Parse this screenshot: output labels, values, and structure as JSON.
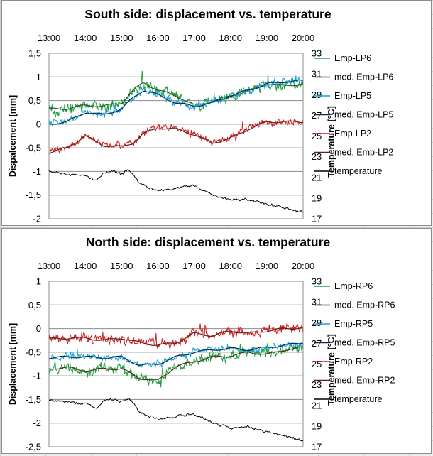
{
  "chart_data": [
    {
      "type": "line",
      "title": "South side: displacement vs. temperature",
      "ylabel": "Dispalcement [mm]",
      "y2label": "Temperature [°C]",
      "xlabel": "",
      "x_ticks": [
        "13:00",
        "14:00",
        "15:00",
        "16:00",
        "17:00",
        "18:00",
        "19:00",
        "20:00"
      ],
      "xlim": [
        13,
        20
      ],
      "ylim": [
        -2,
        1.5
      ],
      "y_ticks": [
        "1,5",
        "1",
        "0,5",
        "0",
        "-0,5",
        "-1",
        "-1,5",
        "-2"
      ],
      "y2lim": [
        17,
        33
      ],
      "y2_ticks": [
        "33",
        "31",
        "29",
        "27",
        "25",
        "23",
        "21",
        "19",
        "17"
      ],
      "grid": true,
      "legend": "right",
      "colors": {
        "Emp-LP6": "#1e9e3a",
        "med. Emp-LP6": "#2f4f2f",
        "Emp-LP5": "#18a2dc",
        "med. Emp-LP5": "#0f2a4d",
        "Emp-LP2": "#d02020",
        "med. Emp-LP2": "#5a1f1f",
        "temperature": "#000000"
      },
      "series": [
        {
          "name": "Emp-LP6",
          "axis": "y",
          "noise": 0.13,
          "x": [
            13,
            13.5,
            14,
            14.5,
            15,
            15.3,
            15.6,
            16,
            16.5,
            17,
            17.5,
            18,
            18.5,
            19,
            19.5,
            20
          ],
          "values": [
            0.32,
            0.33,
            0.4,
            0.38,
            0.45,
            0.7,
            0.88,
            0.72,
            0.6,
            0.4,
            0.48,
            0.6,
            0.7,
            0.85,
            0.82,
            0.85
          ]
        },
        {
          "name": "med. Emp-LP6",
          "axis": "y",
          "noise": 0,
          "x": [
            13,
            13.5,
            14,
            14.5,
            15,
            15.3,
            15.6,
            16,
            16.5,
            17,
            17.5,
            18,
            18.5,
            19,
            19.5,
            20
          ],
          "values": [
            0.32,
            0.33,
            0.4,
            0.38,
            0.45,
            0.7,
            0.88,
            0.72,
            0.6,
            0.4,
            0.48,
            0.6,
            0.7,
            0.85,
            0.82,
            0.85
          ]
        },
        {
          "name": "Emp-LP5",
          "axis": "y",
          "noise": 0.09,
          "x": [
            13,
            13.5,
            14,
            14.5,
            15,
            15.3,
            15.6,
            16,
            16.5,
            17,
            17.5,
            18,
            18.5,
            19,
            19.5,
            20
          ],
          "values": [
            0.0,
            0.05,
            0.25,
            0.2,
            0.32,
            0.55,
            0.72,
            0.62,
            0.45,
            0.38,
            0.45,
            0.6,
            0.72,
            0.85,
            0.9,
            0.92
          ]
        },
        {
          "name": "med. Emp-LP5",
          "axis": "y",
          "noise": 0,
          "x": [
            13,
            13.5,
            14,
            14.5,
            15,
            15.3,
            15.6,
            16,
            16.5,
            17,
            17.5,
            18,
            18.5,
            19,
            19.5,
            20
          ],
          "values": [
            0.0,
            0.05,
            0.25,
            0.2,
            0.32,
            0.55,
            0.72,
            0.62,
            0.45,
            0.38,
            0.45,
            0.6,
            0.72,
            0.85,
            0.9,
            0.92
          ]
        },
        {
          "name": "Emp-LP2",
          "axis": "y",
          "noise": 0.09,
          "x": [
            13,
            13.5,
            14,
            14.5,
            15,
            15.3,
            15.6,
            16,
            16.5,
            17,
            17.5,
            18,
            18.5,
            19,
            19.5,
            20
          ],
          "values": [
            -0.6,
            -0.5,
            -0.25,
            -0.45,
            -0.48,
            -0.4,
            -0.2,
            -0.08,
            -0.1,
            -0.22,
            -0.4,
            -0.3,
            -0.1,
            0.05,
            0.05,
            0.05
          ]
        },
        {
          "name": "med. Emp-LP2",
          "axis": "y",
          "noise": 0,
          "x": [
            13,
            13.5,
            14,
            14.5,
            15,
            15.3,
            15.6,
            16,
            16.5,
            17,
            17.5,
            18,
            18.5,
            19,
            19.5,
            20
          ],
          "values": [
            -0.6,
            -0.5,
            -0.25,
            -0.45,
            -0.48,
            -0.4,
            -0.2,
            -0.08,
            -0.1,
            -0.22,
            -0.4,
            -0.3,
            -0.1,
            0.05,
            0.05,
            0.05
          ]
        },
        {
          "name": "temperature",
          "axis": "y2",
          "noise": 0.15,
          "x": [
            13,
            13.5,
            14,
            14.3,
            14.5,
            14.8,
            15,
            15.2,
            15.5,
            16,
            16.5,
            17,
            17.5,
            18,
            18.5,
            19,
            19.5,
            20
          ],
          "values": [
            21.6,
            21.3,
            21.2,
            20.7,
            21.4,
            21.6,
            21.3,
            21.8,
            20.4,
            19.6,
            20.0,
            20.2,
            19.3,
            18.8,
            18.9,
            18.4,
            18.1,
            17.6
          ]
        }
      ]
    },
    {
      "type": "line",
      "title": "North side: displacement vs. temperature",
      "ylabel": "Displacement [mm]",
      "y2label": "Temperature [°C]",
      "xlabel": "",
      "x_ticks": [
        "13:00",
        "14:00",
        "15:00",
        "16:00",
        "17:00",
        "18:00",
        "19:00",
        "20:00"
      ],
      "xlim": [
        13,
        20
      ],
      "ylim": [
        -2.5,
        1
      ],
      "y_ticks": [
        "1",
        "0,5",
        "0",
        "-0,5",
        "-1",
        "-1,5",
        "-2",
        "-2,5"
      ],
      "y2lim": [
        17,
        33
      ],
      "y2_ticks": [
        "33",
        "31",
        "29",
        "27",
        "25",
        "23",
        "21",
        "19",
        "17"
      ],
      "grid": true,
      "legend": "right",
      "colors": {
        "Emp-RP6": "#1e9e3a",
        "med. Emp-RP6": "#5a1f1f",
        "Emp-RP5": "#18a2dc",
        "med. Emp-RP5": "#0f2a4d",
        "Emp-RP2": "#d02020",
        "med. Emp-RP2": "#5a1f1f",
        "temperature": "#000000"
      },
      "series": [
        {
          "name": "Emp-RP2",
          "axis": "y",
          "noise": 0.12,
          "x": [
            13,
            13.5,
            14,
            14.5,
            15,
            15.5,
            16,
            16.5,
            17,
            17.5,
            18,
            18.5,
            19,
            19.5,
            20
          ],
          "values": [
            -0.22,
            -0.2,
            -0.2,
            -0.25,
            -0.2,
            -0.3,
            -0.35,
            -0.3,
            -0.1,
            -0.15,
            -0.05,
            -0.1,
            -0.05,
            0.0,
            0.02
          ]
        },
        {
          "name": "med. Emp-RP2",
          "axis": "y",
          "noise": 0,
          "x": [
            13,
            13.5,
            14,
            14.5,
            15,
            15.5,
            16,
            16.5,
            17,
            17.5,
            18,
            18.5,
            19,
            19.5,
            20
          ],
          "values": [
            -0.22,
            -0.2,
            -0.2,
            -0.25,
            -0.2,
            -0.3,
            -0.35,
            -0.3,
            -0.1,
            -0.15,
            -0.05,
            -0.1,
            -0.05,
            0.0,
            0.02
          ]
        },
        {
          "name": "Emp-RP6",
          "axis": "y",
          "noise": 0.13,
          "x": [
            13,
            13.5,
            14,
            14.5,
            15,
            15.5,
            16,
            16.5,
            17,
            17.5,
            18,
            18.5,
            19,
            19.5,
            20
          ],
          "values": [
            -0.85,
            -0.82,
            -0.9,
            -0.85,
            -0.85,
            -1.05,
            -1.1,
            -0.8,
            -0.7,
            -0.6,
            -0.58,
            -0.5,
            -0.55,
            -0.45,
            -0.4
          ]
        },
        {
          "name": "med. Emp-RP6",
          "axis": "y",
          "noise": 0,
          "x": [
            13,
            13.5,
            14,
            14.5,
            15,
            15.5,
            16,
            16.5,
            17,
            17.5,
            18,
            18.5,
            19,
            19.5,
            20
          ],
          "values": [
            -0.85,
            -0.82,
            -0.9,
            -0.85,
            -0.85,
            -1.05,
            -1.1,
            -0.8,
            -0.7,
            -0.6,
            -0.58,
            -0.5,
            -0.55,
            -0.45,
            -0.4
          ]
        },
        {
          "name": "Emp-RP5",
          "axis": "y",
          "noise": 0.08,
          "x": [
            13,
            13.5,
            14,
            14.5,
            15,
            15.5,
            16,
            16.5,
            17,
            17.5,
            18,
            18.5,
            19,
            19.5,
            20
          ],
          "values": [
            -0.62,
            -0.6,
            -0.6,
            -0.62,
            -0.6,
            -0.78,
            -0.75,
            -0.6,
            -0.5,
            -0.45,
            -0.42,
            -0.45,
            -0.4,
            -0.35,
            -0.3
          ]
        },
        {
          "name": "med. Emp-RP5",
          "axis": "y",
          "noise": 0,
          "x": [
            13,
            13.5,
            14,
            14.5,
            15,
            15.5,
            16,
            16.5,
            17,
            17.5,
            18,
            18.5,
            19,
            19.5,
            20
          ],
          "values": [
            -0.62,
            -0.6,
            -0.6,
            -0.62,
            -0.6,
            -0.78,
            -0.75,
            -0.6,
            -0.5,
            -0.45,
            -0.42,
            -0.45,
            -0.4,
            -0.35,
            -0.3
          ]
        },
        {
          "name": "temperature",
          "axis": "y2",
          "noise": 0.15,
          "x": [
            13,
            13.5,
            14,
            14.3,
            14.5,
            14.8,
            15,
            15.2,
            15.5,
            16,
            16.5,
            17,
            17.5,
            18,
            18.5,
            19,
            19.5,
            20
          ],
          "values": [
            21.6,
            21.3,
            21.2,
            20.7,
            21.4,
            21.6,
            21.3,
            21.8,
            20.4,
            19.6,
            20.0,
            20.2,
            19.3,
            18.8,
            18.9,
            18.4,
            18.1,
            17.6
          ]
        }
      ],
      "legend_order": [
        "Emp-RP6",
        "med. Emp-RP6",
        "Emp-RP5",
        "med. Emp-RP5",
        "Emp-RP2",
        "med. Emp-RP2",
        "temperature"
      ]
    }
  ]
}
